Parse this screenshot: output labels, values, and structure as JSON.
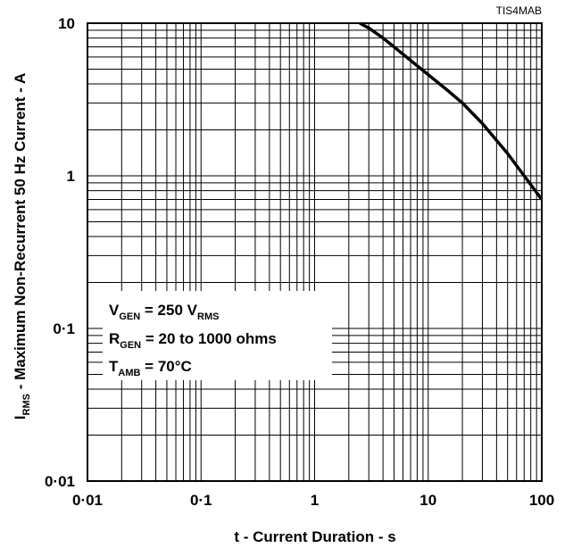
{
  "figure_id": "TIS4MAB",
  "chart_data": {
    "type": "line",
    "x_scale": "log",
    "y_scale": "log",
    "xlim": [
      0.01,
      100
    ],
    "ylim": [
      0.01,
      10
    ],
    "x_ticks": [
      "0·01",
      "0·1",
      "1",
      "10",
      "100"
    ],
    "y_ticks": [
      "10",
      "1",
      "0·1",
      "0·01"
    ],
    "xlabel": "t - Current Duration - s",
    "ylabel": {
      "main": "I",
      "sub": "RMS",
      "rest": " - Maximum Non-Recurrent 50 Hz Current - A"
    },
    "grid": true,
    "series": [
      {
        "x": [
          2.5,
          3,
          4,
          5,
          7,
          10,
          15,
          20,
          30,
          50,
          70,
          100
        ],
        "y": [
          10,
          9.3,
          8.0,
          7.0,
          5.7,
          4.6,
          3.6,
          3.0,
          2.2,
          1.4,
          1.0,
          0.7
        ]
      }
    ],
    "annotations": [
      {
        "main": "V",
        "sub": "GEN",
        "mid": " = 250 V",
        "sub2": "RMS",
        "tail": ""
      },
      {
        "main": "R",
        "sub": "GEN",
        "mid": " = 20 to 1000 ohms",
        "sub2": "",
        "tail": ""
      },
      {
        "main": "T",
        "sub": "AMB",
        "mid": " = 70°C",
        "sub2": "",
        "tail": ""
      }
    ]
  }
}
